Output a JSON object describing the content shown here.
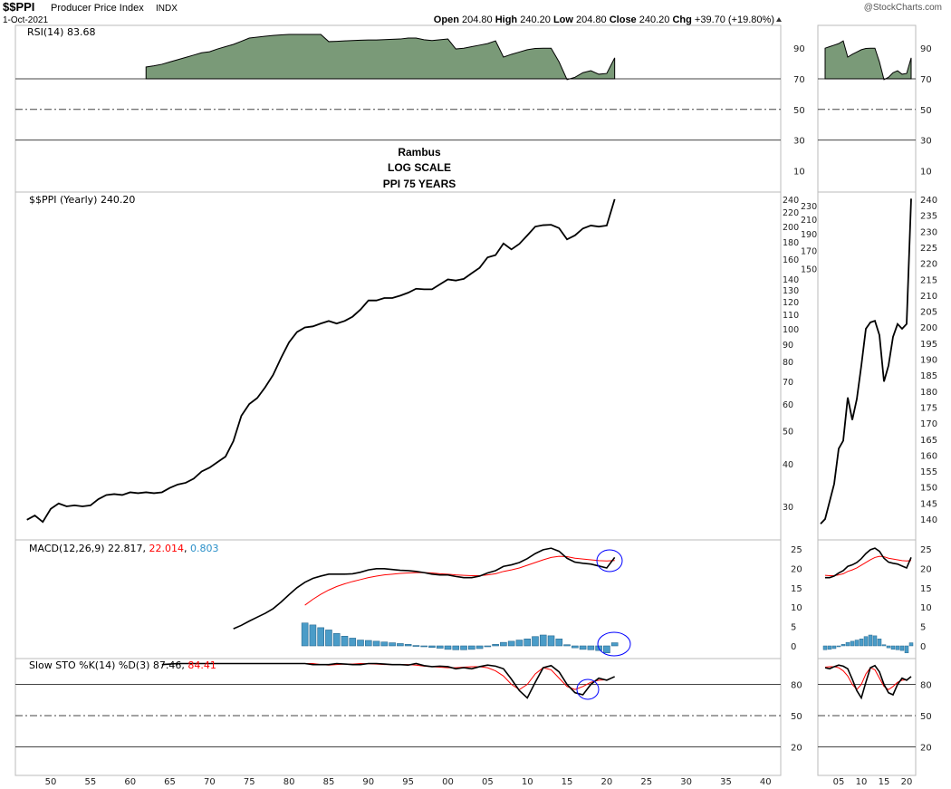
{
  "header": {
    "symbol": "$$PPI",
    "name": "Producer Price Index",
    "exchange": "INDX",
    "date": "1-Oct-2021",
    "watermark": "@StockCharts.com",
    "ohlc": {
      "open_label": "Open",
      "open": "204.80",
      "high_label": "High",
      "high": "240.20",
      "low_label": "Low",
      "low": "204.80",
      "close_label": "Close",
      "close": "240.20",
      "chg_label": "Chg",
      "chg": "+39.70 (+19.80%)"
    }
  },
  "annotation": {
    "line1": "Rambus",
    "line2": "LOG SCALE",
    "line3": "PPI 75 YEARS"
  },
  "colors": {
    "rsi_fill": "#7a9a78",
    "price": "#000000",
    "signal": "#ff0000",
    "histogram": "#4a9cc8",
    "annotation_circle": "#0000ff",
    "grid": "#bbbbbb"
  },
  "chart_data": [
    {
      "type": "area",
      "panel": "rsi",
      "legend": "RSI(14) 83.68",
      "ylim": [
        0,
        100
      ],
      "ticks": [
        "90",
        "70",
        "50",
        "30",
        "10"
      ],
      "reference_lines": [
        70,
        50,
        30
      ],
      "x_start": 1962,
      "values": [
        77.7,
        78.5,
        79.5,
        81,
        82.5,
        84,
        85.5,
        87,
        87.7,
        89.5,
        91,
        92.5,
        94.5,
        96.6,
        97.2,
        97.8,
        98.3,
        98.7,
        99,
        99,
        99,
        99,
        99,
        94.3,
        94.5,
        94.8,
        95,
        95.2,
        95.4,
        95.4,
        95.6,
        95.8,
        96,
        96.6,
        96.6,
        95.5,
        95,
        95.5,
        96,
        89.5,
        90,
        91,
        92,
        93,
        94.8,
        84.2,
        86,
        87.5,
        89,
        89.8,
        90,
        90,
        81,
        69.5,
        71,
        74,
        75.3,
        73,
        73.5,
        83.68
      ]
    },
    {
      "type": "line",
      "panel": "price",
      "legend": "$$PPI (Yearly) 240.20",
      "scale": "log",
      "ticks": [
        "240",
        "230",
        "220",
        "210",
        "200",
        "190",
        "180",
        "170",
        "160",
        "150",
        "140",
        "130",
        "120",
        "110",
        "100",
        "90",
        "80",
        "70",
        "60",
        "50",
        "40",
        "30"
      ],
      "x_start": 1947,
      "values": [
        27.4,
        28.2,
        27.0,
        29.5,
        30.6,
        30.0,
        30.2,
        30.0,
        30.2,
        31.5,
        32.4,
        32.6,
        32.4,
        33.0,
        32.8,
        33.0,
        32.8,
        33.0,
        34.0,
        34.8,
        35.2,
        36.2,
        38.0,
        39.0,
        40.5,
        42.0,
        46.7,
        55.4,
        60.0,
        62.5,
        67.2,
        73.1,
        82,
        91.1,
        97.7,
        100.8,
        101.5,
        103.5,
        105.3,
        103.5,
        105.3,
        108.4,
        113.8,
        121,
        121,
        123,
        123,
        125,
        127.5,
        131,
        130.5,
        130.5,
        135,
        139.5,
        138.5,
        140,
        145.5,
        151,
        162,
        164.5,
        178,
        171,
        177.5,
        188,
        199.5,
        201.5,
        202,
        197.5,
        183,
        188,
        197,
        201,
        199.5,
        201,
        240.2
      ],
      "right_ticks": [
        "240",
        "235",
        "230",
        "225",
        "220",
        "215",
        "210",
        "205",
        "200",
        "195",
        "190",
        "185",
        "180",
        "175",
        "170",
        "165",
        "160",
        "155",
        "150",
        "145",
        "140"
      ]
    },
    {
      "type": "line",
      "panel": "macd",
      "legend_prefix": "MACD(12,26,9) 22.817",
      "legend_signal": "22.014",
      "legend_hist": "0.803",
      "ticks": [
        "25",
        "20",
        "15",
        "10",
        "5",
        "0"
      ],
      "macd": {
        "x_start": 1973,
        "values": [
          4.4,
          5.3,
          6.4,
          7.4,
          8.4,
          9.6,
          11.3,
          13.2,
          15,
          16.4,
          17.4,
          18,
          18.5,
          18.5,
          18.5,
          18.6,
          19,
          19.6,
          19.9,
          19.9,
          19.7,
          19.5,
          19.4,
          19.2,
          18.9,
          18.5,
          18.3,
          18.3,
          17.9,
          17.6,
          17.6,
          18.0,
          18.8,
          19.4,
          20.5,
          20.9,
          21.5,
          22.5,
          23.8,
          24.8,
          25.2,
          24.4,
          22.6,
          21.6,
          21.3,
          21.1,
          20.6,
          20.1,
          22.817
        ]
      },
      "signal": {
        "x_start": 1982,
        "values": [
          10.5,
          12,
          13.3,
          14.4,
          15.3,
          16,
          16.6,
          17.1,
          17.6,
          18,
          18.3,
          18.5,
          18.7,
          18.8,
          18.9,
          18.9,
          18.8,
          18.6,
          18.5,
          18.3,
          18.2,
          18.1,
          18.1,
          18.3,
          18.6,
          19.2,
          19.6,
          20.1,
          20.8,
          21.5,
          22.2,
          22.8,
          23.1,
          23,
          22.6,
          22.4,
          22.2,
          22,
          21.9,
          22.014
        ]
      },
      "histogram": {
        "x_start": 1982,
        "values": [
          5.9,
          5.4,
          4.7,
          4.1,
          3.2,
          2.5,
          2,
          1.5,
          1.4,
          1.2,
          1,
          0.8,
          0.6,
          0.4,
          0.1,
          -0.2,
          -0.4,
          -0.6,
          -0.9,
          -1.0,
          -1.0,
          -0.9,
          -0.7,
          -0.2,
          0.4,
          0.9,
          1.2,
          1.5,
          1.8,
          2.4,
          2.8,
          2.6,
          1.8,
          0.3,
          -0.5,
          -0.9,
          -1.0,
          -1.2,
          -1.8,
          0.803
        ]
      }
    },
    {
      "type": "line",
      "panel": "stochastic",
      "legend_prefix": "Slow STO %K(14) %D(3) 87.46",
      "legend_d": "84.41",
      "ticks": [
        "80",
        "50",
        "20"
      ],
      "reference_lines": [
        80,
        50,
        20
      ],
      "k": {
        "x_start": 1964,
        "values": [
          99,
          99.5,
          100,
          100,
          100,
          100,
          100,
          100,
          100,
          100,
          100,
          100,
          100,
          100,
          100,
          100,
          100,
          100,
          100,
          99,
          99,
          99,
          100,
          99.5,
          99,
          99,
          100,
          100,
          99.5,
          99,
          99,
          98.5,
          100,
          98,
          97,
          97.5,
          97,
          95,
          96,
          95,
          97,
          98.5,
          97.5,
          95,
          85,
          74,
          67,
          82,
          96,
          98,
          92,
          80,
          72,
          70,
          80,
          86,
          84,
          87.46
        ]
      },
      "d": {
        "x_start": 1981,
        "values": [
          100,
          100,
          100,
          99,
          98.5,
          99,
          99.5,
          99.5,
          100,
          99.8,
          99.5,
          99,
          99,
          99,
          99,
          98.5,
          97.5,
          97,
          96.5,
          96,
          96,
          96.5,
          97,
          97,
          96,
          93,
          88,
          80,
          75,
          80,
          90,
          96,
          94,
          86,
          78,
          75,
          78,
          82,
          84,
          84.41
        ]
      }
    }
  ],
  "x_axis": {
    "ticks": [
      "50",
      "55",
      "60",
      "65",
      "70",
      "75",
      "80",
      "85",
      "90",
      "95",
      "00",
      "05",
      "10",
      "15",
      "20",
      "25",
      "30",
      "35",
      "40"
    ],
    "right_ticks": [
      "05",
      "10",
      "15",
      "20"
    ]
  }
}
